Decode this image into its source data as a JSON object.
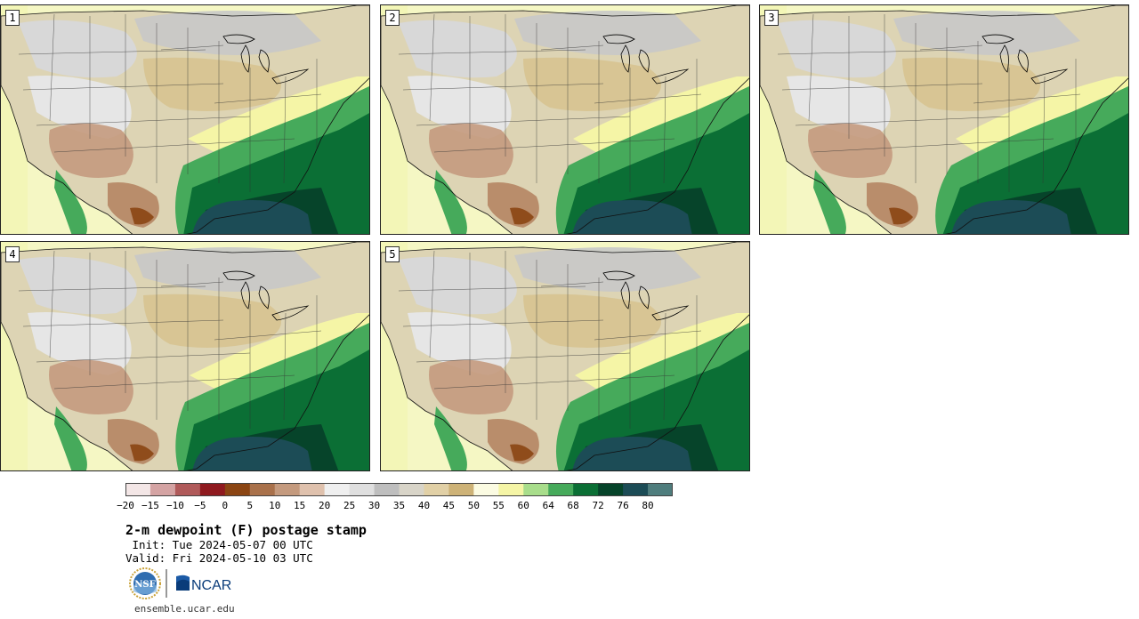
{
  "panels": [
    {
      "label": "1"
    },
    {
      "label": "2"
    },
    {
      "label": "3"
    },
    {
      "label": "4"
    },
    {
      "label": "5"
    }
  ],
  "colorbar": {
    "ticks": [
      "−20",
      "−15",
      "−10",
      "−5",
      "0",
      "5",
      "10",
      "15",
      "20",
      "25",
      "30",
      "35",
      "40",
      "45",
      "50",
      "55",
      "60",
      "64",
      "68",
      "72",
      "76",
      "80"
    ],
    "colors": [
      "#f3e6e6",
      "#d4a3a3",
      "#b05a5a",
      "#8f1a1f",
      "#8b4513",
      "#a9714b",
      "#c49a7e",
      "#dfc1ad",
      "#efefef",
      "#dfdfdf",
      "#bebebe",
      "#d8d4c8",
      "#e1d0a6",
      "#cdb277",
      "#fbfbe2",
      "#f5f5a6",
      "#a8dd8b",
      "#46aa5b",
      "#0b6f35",
      "#06442a",
      "#1c4c56",
      "#4f7d7d"
    ]
  },
  "title": "2-m dewpoint (F) postage stamp",
  "init_line": " Init: Tue 2024-05-07 00 UTC",
  "valid_line": "Valid: Fri 2024-05-10 03 UTC",
  "logos": {
    "nsf_text": "NSF",
    "ncar_text": "NCAR"
  },
  "url": "ensemble.ucar.edu"
}
